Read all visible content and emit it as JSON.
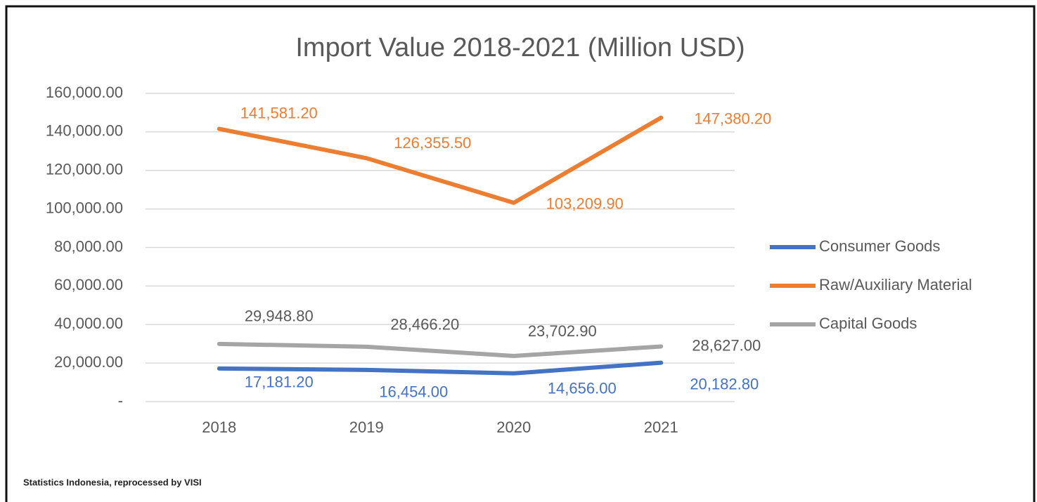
{
  "chart_data": {
    "type": "line",
    "title": "Import Value 2018-2021 (Million USD)",
    "categories": [
      "2018",
      "2019",
      "2020",
      "2021"
    ],
    "series": [
      {
        "name": "Consumer Goods",
        "color": "#4472c4",
        "values": [
          17181.2,
          16454.0,
          14656.0,
          20182.8
        ],
        "value_labels": [
          "17,181.20",
          "16,454.00",
          "14,656.00",
          "20,182.80"
        ]
      },
      {
        "name": "Raw/Auxiliary Material",
        "color": "#ed7d31",
        "values": [
          141581.2,
          126355.5,
          103209.9,
          147380.2
        ],
        "value_labels": [
          "141,581.20",
          "126,355.50",
          "103,209.90",
          "147,380.20"
        ]
      },
      {
        "name": "Capital Goods",
        "color": "#a5a5a5",
        "values": [
          29948.8,
          28466.2,
          23702.9,
          28627.0
        ],
        "value_labels": [
          "29,948.80",
          "28,466.20",
          "23,702.90",
          "28,627.00"
        ]
      }
    ],
    "ylim": [
      0,
      160000
    ],
    "yticks": [
      {
        "value": 0,
        "label": "-"
      },
      {
        "value": 20000,
        "label": "20,000.00"
      },
      {
        "value": 40000,
        "label": "40,000.00"
      },
      {
        "value": 60000,
        "label": "60,000.00"
      },
      {
        "value": 80000,
        "label": "80,000.00"
      },
      {
        "value": 100000,
        "label": "100,000.00"
      },
      {
        "value": 120000,
        "label": "120,000.00"
      },
      {
        "value": 140000,
        "label": "140,000.00"
      },
      {
        "value": 160000,
        "label": "160,000.00"
      }
    ],
    "grid": true,
    "legend": "right",
    "source": "Statistics Indonesia, reprocessed by VISI"
  }
}
